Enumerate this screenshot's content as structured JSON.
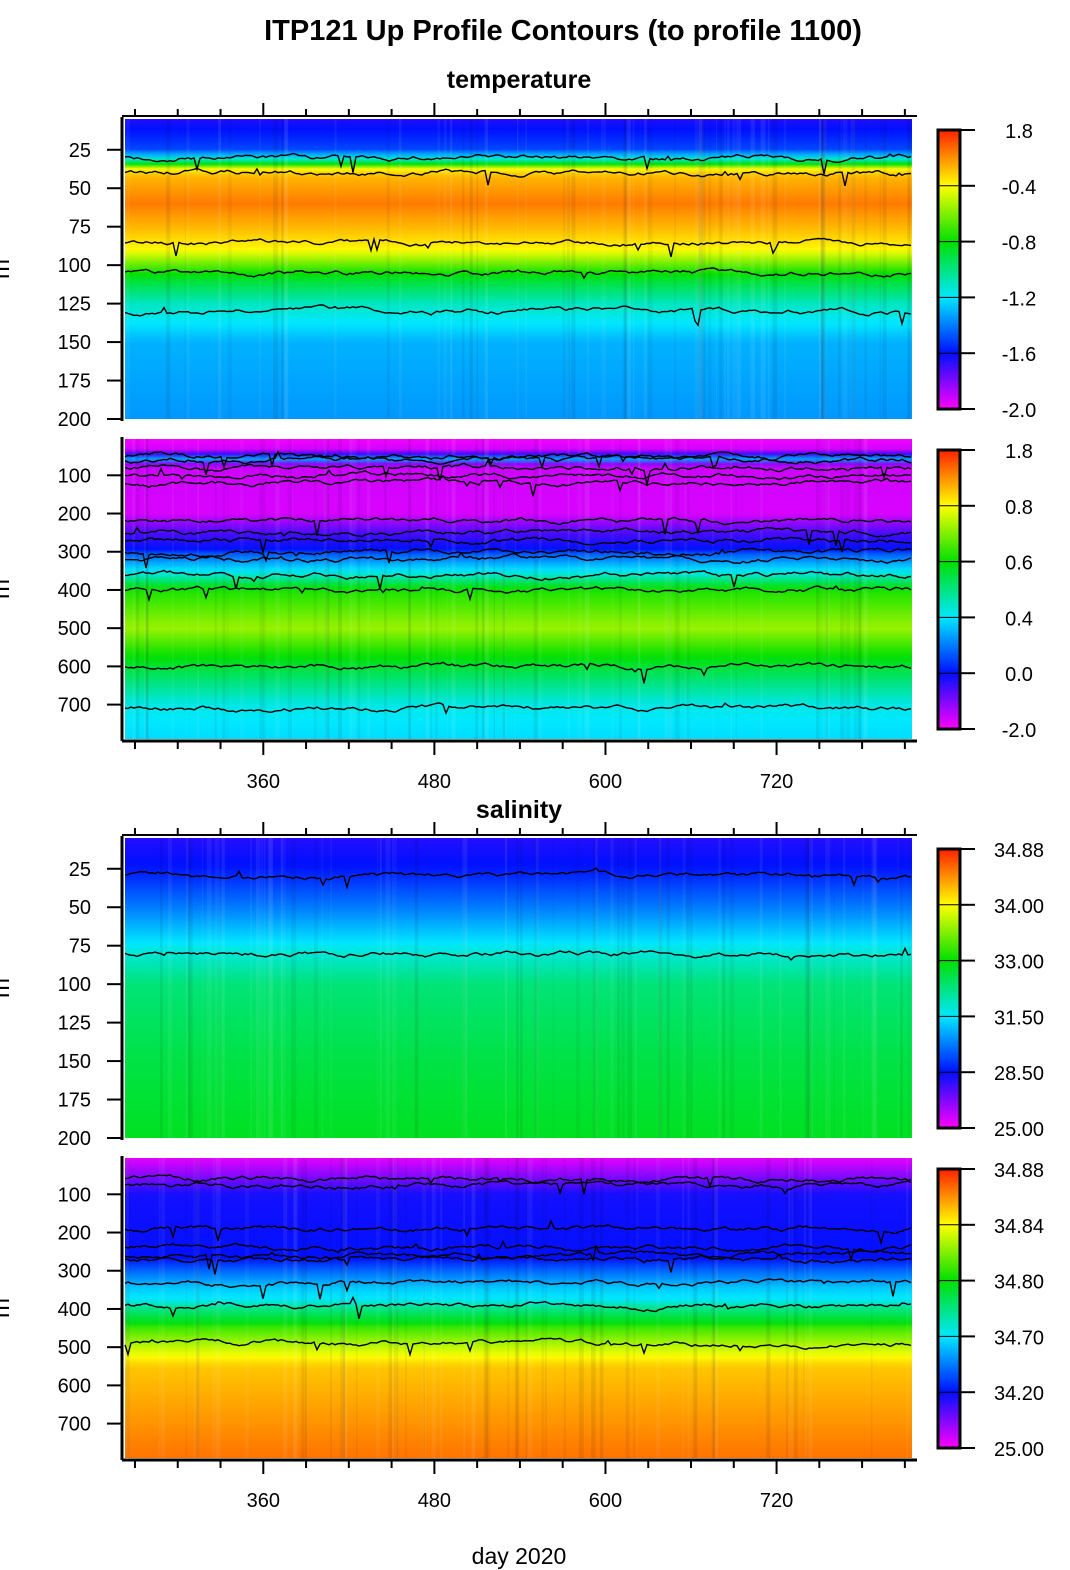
{
  "title": "ITP121 Up Profile Contours (to profile 1100)",
  "xlabel": "day 2020",
  "sections": [
    {
      "subtitle": "temperature"
    },
    {
      "subtitle": "salinity"
    }
  ],
  "chart_data": [
    {
      "type": "heatmap",
      "variable": "temperature",
      "ylabel": "m",
      "ylim": [
        200,
        5
      ],
      "yticks": [
        25,
        50,
        75,
        100,
        125,
        150,
        175,
        200
      ],
      "xlim": [
        263,
        815
      ],
      "xticks": [
        360,
        480,
        600,
        720
      ],
      "colorbar_levels": [
        -2.0,
        -1.6,
        -1.2,
        -0.8,
        -0.4,
        1.8
      ],
      "mean_profile": [
        [
          5,
          -1.65
        ],
        [
          25,
          -1.5
        ],
        [
          33,
          -1.0
        ],
        [
          42,
          0.3
        ],
        [
          60,
          0.9
        ],
        [
          78,
          0.2
        ],
        [
          92,
          -0.45
        ],
        [
          108,
          -0.85
        ],
        [
          125,
          -1.1
        ],
        [
          150,
          -1.3
        ],
        [
          200,
          -1.35
        ]
      ],
      "contour_depths_approx": [
        30,
        40,
        85,
        105,
        130
      ]
    },
    {
      "type": "heatmap",
      "variable": "temperature",
      "ylabel": "m",
      "ylim": [
        790,
        5
      ],
      "yticks": [
        100,
        200,
        300,
        400,
        500,
        600,
        700
      ],
      "xlim": [
        263,
        815
      ],
      "xticks": [
        360,
        480,
        600,
        720
      ],
      "colorbar_levels": [
        -2.0,
        0.0,
        0.4,
        0.6,
        0.8,
        1.8
      ],
      "mean_profile": [
        [
          5,
          -1.9
        ],
        [
          40,
          -1.6
        ],
        [
          50,
          1.0
        ],
        [
          60,
          0.0
        ],
        [
          75,
          -1.6
        ],
        [
          200,
          -1.7
        ],
        [
          250,
          -0.6
        ],
        [
          300,
          0.1
        ],
        [
          340,
          0.35
        ],
        [
          400,
          0.62
        ],
        [
          500,
          0.72
        ],
        [
          600,
          0.56
        ],
        [
          700,
          0.42
        ],
        [
          790,
          0.38
        ]
      ],
      "contour_depths_approx": [
        50,
        60,
        80,
        100,
        120,
        220,
        250,
        270,
        300,
        320,
        360,
        400,
        600,
        710
      ]
    },
    {
      "type": "heatmap",
      "variable": "salinity",
      "ylabel": "m",
      "ylim": [
        200,
        5
      ],
      "yticks": [
        25,
        50,
        75,
        100,
        125,
        150,
        175,
        200
      ],
      "xlim": [
        263,
        815
      ],
      "xticks": [
        360,
        480,
        600,
        720
      ],
      "colorbar_levels": [
        25.0,
        28.5,
        31.5,
        33.0,
        34.0,
        34.88
      ],
      "mean_profile": [
        [
          5,
          28.0
        ],
        [
          25,
          28.6
        ],
        [
          50,
          30.0
        ],
        [
          75,
          31.6
        ],
        [
          100,
          32.3
        ],
        [
          150,
          32.6
        ],
        [
          200,
          32.8
        ]
      ],
      "contour_depths_approx": [
        30,
        80
      ]
    },
    {
      "type": "heatmap",
      "variable": "salinity",
      "ylabel": "m",
      "ylim": [
        790,
        5
      ],
      "yticks": [
        100,
        200,
        300,
        400,
        500,
        600,
        700
      ],
      "xlim": [
        263,
        815
      ],
      "xticks": [
        360,
        480,
        600,
        720
      ],
      "colorbar_levels": [
        25.0,
        34.2,
        34.7,
        34.8,
        34.84,
        34.88
      ],
      "mean_profile": [
        [
          5,
          26
        ],
        [
          60,
          30
        ],
        [
          100,
          33.5
        ],
        [
          250,
          34.1
        ],
        [
          300,
          34.4
        ],
        [
          350,
          34.65
        ],
        [
          400,
          34.75
        ],
        [
          450,
          34.81
        ],
        [
          550,
          34.85
        ],
        [
          790,
          34.865
        ]
      ],
      "contour_depths_approx": [
        60,
        75,
        190,
        240,
        260,
        270,
        330,
        390,
        490
      ]
    }
  ],
  "colorbar_colors": [
    "#ff00ff",
    "#0010ff",
    "#00e8ff",
    "#00e000",
    "#ffff00",
    "#ff2000"
  ]
}
